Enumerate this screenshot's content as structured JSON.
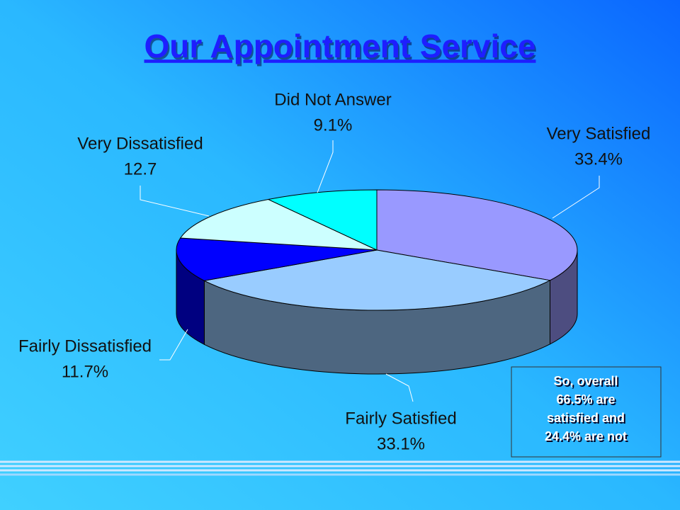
{
  "chart_data": {
    "type": "pie",
    "title": "Our Appointment Service",
    "categories": [
      "Very Satisfied",
      "Fairly Satisfied",
      "Fairly Dissatisfied",
      "Very Dissatisfied",
      "Did Not Answer"
    ],
    "values": [
      33.4,
      33.1,
      11.7,
      12.7,
      9.1
    ],
    "value_labels": [
      "33.4%",
      "33.1%",
      "11.7%",
      "12.7",
      "9.1%"
    ],
    "colors": [
      "#9999ff",
      "#99ccff",
      "#0000ff",
      "#ccffff",
      "#00ffff"
    ],
    "annotation": [
      "So, overall",
      "66.5% are",
      "satisfied and",
      "24.4% are not"
    ]
  }
}
